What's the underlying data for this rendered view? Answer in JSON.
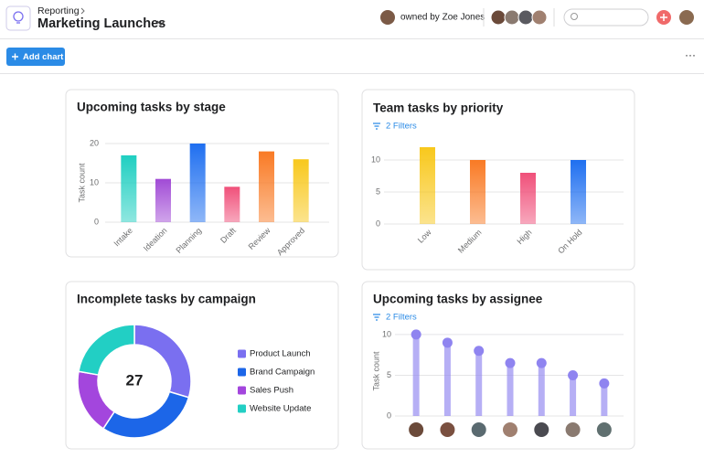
{
  "header": {
    "breadcrumb": "Reporting",
    "title": "Marketing Launches",
    "owner": "owned by Zoe Jones",
    "add_button": "Add chart"
  },
  "chart_data": [
    {
      "type": "bar",
      "title": "Upcoming tasks by stage",
      "y_label": "Task count",
      "categories": [
        "Intake",
        "Ideation",
        "Planning",
        "Draft",
        "Review",
        "Approved"
      ],
      "values": [
        17,
        11,
        20,
        9,
        18,
        16
      ],
      "colors": [
        "#1fcfc1",
        "#a14bd6",
        "#1f6ff0",
        "#f0507a",
        "#f97a24",
        "#f8c81c"
      ],
      "ylim": [
        0,
        20
      ],
      "yticks": [
        0,
        10,
        20
      ],
      "grid": true
    },
    {
      "type": "bar",
      "title": "Team tasks by priority",
      "subtitle": "2 Filters",
      "categories": [
        "Low",
        "Medium",
        "High",
        "On Hold"
      ],
      "values": [
        12,
        10,
        8,
        10
      ],
      "colors": [
        "#f8c81c",
        "#f97a24",
        "#f0507a",
        "#1f6ff0"
      ],
      "ylim": [
        0,
        13
      ],
      "yticks": [
        0,
        5,
        10
      ],
      "grid": true
    },
    {
      "type": "donut",
      "title": "Incomplete tasks by campaign",
      "total": 27,
      "categories": [
        "Product Launch",
        "Brand Campaign",
        "Sales Push",
        "Website Update"
      ],
      "values": [
        8,
        8,
        5,
        6
      ],
      "colors": [
        "#7a6ff0",
        "#1c66e8",
        "#a346dd",
        "#22cfc4"
      ]
    },
    {
      "type": "lollipop",
      "title": "Upcoming tasks by assignee",
      "subtitle": "2 Filters",
      "y_label": "Task count",
      "categories": [
        null,
        null,
        null,
        null,
        null,
        null,
        null
      ],
      "values": [
        10,
        9,
        8,
        6.5,
        6.5,
        5,
        4
      ],
      "color": "#8f84f0",
      "ylim": [
        0,
        11
      ],
      "yticks": [
        0,
        5,
        10
      ],
      "grid": true
    }
  ]
}
